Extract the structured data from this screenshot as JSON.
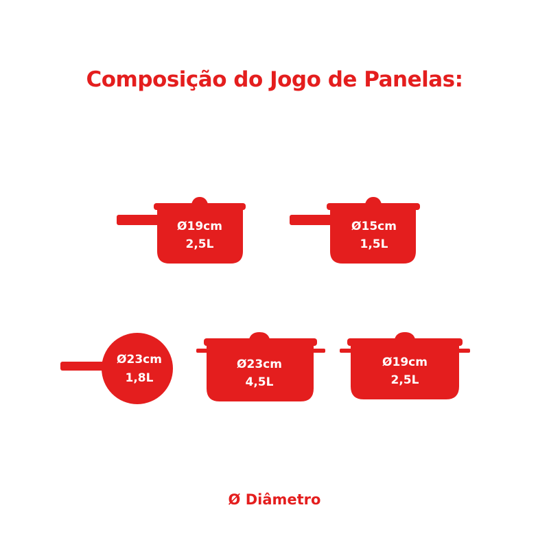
{
  "title": "Composição do Jogo de Panelas:",
  "legend": "Ø Diâmetro",
  "colors": {
    "pot": "#e41e1e",
    "label": "#ffffff"
  },
  "pots": [
    {
      "kind": "saucepan",
      "diameter": "Ø19cm",
      "volume": "2,5L"
    },
    {
      "kind": "saucepan",
      "diameter": "Ø15cm",
      "volume": "1,5L"
    },
    {
      "kind": "frying-pan",
      "diameter": "Ø23cm",
      "volume": "1,8L"
    },
    {
      "kind": "casserole",
      "diameter": "Ø23cm",
      "volume": "4,5L"
    },
    {
      "kind": "casserole",
      "diameter": "Ø19cm",
      "volume": "2,5L"
    }
  ]
}
